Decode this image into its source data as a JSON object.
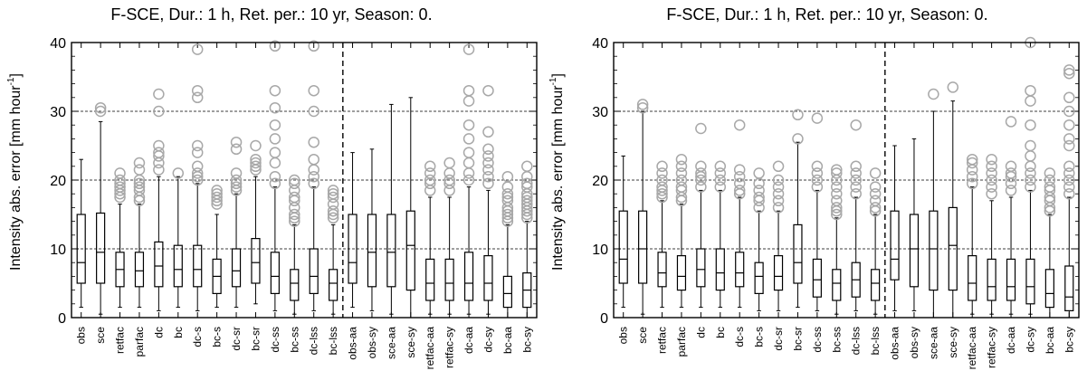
{
  "chart_data": [
    {
      "type": "box",
      "title": "F-SCE, Dur.:   1 h, Ret. per.:  10 yr, Season:  0.",
      "ylabel_main": "Intensity abs. error [mm hour",
      "ylabel_sup": "-1",
      "ylabel_end": "]",
      "ylim": [
        0,
        40
      ],
      "yticks": [
        "0",
        "10",
        "20",
        "30",
        "40"
      ],
      "dashed_hlines": [
        10,
        20,
        30
      ],
      "split_after": 14,
      "categories": [
        "obs",
        "sce",
        "retfac",
        "parfac",
        "dc",
        "bc",
        "dc-s",
        "bc-s",
        "dc-sr",
        "bc-sr",
        "dc-ss",
        "bc-ss",
        "dc-lss",
        "bc-lss",
        "obs-aa",
        "obs-sy",
        "sce-aa",
        "sce-sy",
        "retfac-aa",
        "retfac-sy",
        "dc-aa",
        "dc-sy",
        "bc-aa",
        "bc-sy"
      ],
      "boxes": [
        {
          "min": 1.5,
          "q1": 5.0,
          "median": 8.0,
          "q3": 15.0,
          "max": 23.0,
          "outliers": []
        },
        {
          "min": 0.5,
          "q1": 5.0,
          "median": 9.5,
          "q3": 15.2,
          "max": 28.5,
          "outliers": [
            30.0,
            30.5
          ]
        },
        {
          "min": 1.5,
          "q1": 4.5,
          "median": 7.0,
          "q3": 9.5,
          "max": 16.5,
          "outliers": [
            17.5,
            18.0,
            18.5,
            19.0,
            19.5,
            20.0,
            21.0
          ]
        },
        {
          "min": 1.5,
          "q1": 4.5,
          "median": 6.8,
          "q3": 9.5,
          "max": 16.5,
          "outliers": [
            17.0,
            17.5,
            18.5,
            19.0,
            19.5,
            20.0,
            21.5,
            22.5
          ]
        },
        {
          "min": 1.0,
          "q1": 4.5,
          "median": 7.5,
          "q3": 11.0,
          "max": 20.5,
          "outliers": [
            21.5,
            22.5,
            23.5,
            24.0,
            25.0,
            30.0,
            32.5
          ]
        },
        {
          "min": 1.5,
          "q1": 4.5,
          "median": 7.0,
          "q3": 10.5,
          "max": 20.5,
          "outliers": [
            21.0
          ]
        },
        {
          "min": 1.0,
          "q1": 4.5,
          "median": 7.0,
          "q3": 10.5,
          "max": 19.5,
          "outliers": [
            20.0,
            20.5,
            21.0,
            22.0,
            24.0,
            25.0,
            32.0,
            33.0,
            39.0
          ]
        },
        {
          "min": 1.5,
          "q1": 3.5,
          "median": 6.0,
          "q3": 8.5,
          "max": 15.0,
          "outliers": [
            16.5,
            17.0,
            17.5,
            18.0,
            18.5
          ]
        },
        {
          "min": 1.5,
          "q1": 4.5,
          "median": 6.8,
          "q3": 10.0,
          "max": 18.0,
          "outliers": [
            18.5,
            19.0,
            19.5,
            20.0,
            21.0,
            24.5,
            25.5
          ]
        },
        {
          "min": 2.0,
          "q1": 5.0,
          "median": 8.0,
          "q3": 11.5,
          "max": 20.5,
          "outliers": [
            21.5,
            22.0,
            22.5,
            23.0,
            25.0
          ]
        },
        {
          "min": 1.0,
          "q1": 3.5,
          "median": 6.0,
          "q3": 9.5,
          "max": 19.0,
          "outliers": [
            19.5,
            20.5,
            22.5,
            24.0,
            26.0,
            28.0,
            30.5,
            33.0,
            39.5
          ]
        },
        {
          "min": 0.5,
          "q1": 2.5,
          "median": 5.0,
          "q3": 7.0,
          "max": 13.5,
          "outliers": [
            14.0,
            14.5,
            15.0,
            16.0,
            17.0,
            17.5,
            18.5,
            19.5,
            20.0
          ]
        },
        {
          "min": 1.0,
          "q1": 3.5,
          "median": 6.0,
          "q3": 10.0,
          "max": 19.0,
          "outliers": [
            19.5,
            20.5,
            21.5,
            23.0,
            25.5,
            30.0,
            33.0,
            39.5
          ]
        },
        {
          "min": 0.5,
          "q1": 2.5,
          "median": 5.0,
          "q3": 7.0,
          "max": 13.5,
          "outliers": [
            14.5,
            15.0,
            15.5,
            16.5,
            17.5,
            18.0,
            18.5
          ]
        },
        {
          "min": 1.5,
          "q1": 5.0,
          "median": 8.0,
          "q3": 15.0,
          "max": 24.0,
          "outliers": []
        },
        {
          "min": 1.0,
          "q1": 4.5,
          "median": 9.5,
          "q3": 15.0,
          "max": 24.5,
          "outliers": []
        },
        {
          "min": 0.5,
          "q1": 4.5,
          "median": 9.5,
          "q3": 15.0,
          "max": 31.0,
          "outliers": []
        },
        {
          "min": 0.0,
          "q1": 4.0,
          "median": 10.5,
          "q3": 15.5,
          "max": 32.0,
          "outliers": []
        },
        {
          "min": 0.5,
          "q1": 2.5,
          "median": 5.0,
          "q3": 8.5,
          "max": 17.5,
          "outliers": [
            18.5,
            19.5,
            20.0,
            21.0,
            22.0
          ]
        },
        {
          "min": 0.5,
          "q1": 2.5,
          "median": 5.0,
          "q3": 8.5,
          "max": 17.5,
          "outliers": [
            18.5,
            19.5,
            20.0,
            21.0,
            22.5
          ]
        },
        {
          "min": 0.5,
          "q1": 2.5,
          "median": 5.0,
          "q3": 9.5,
          "max": 19.0,
          "outliers": [
            20.0,
            21.0,
            22.5,
            24.0,
            26.0,
            28.0,
            31.5,
            33.0,
            39.0
          ]
        },
        {
          "min": 0.5,
          "q1": 2.5,
          "median": 5.0,
          "q3": 9.0,
          "max": 18.5,
          "outliers": [
            19.5,
            20.5,
            21.5,
            22.5,
            23.5,
            24.5,
            27.0,
            33.0
          ]
        },
        {
          "min": 0.0,
          "q1": 1.5,
          "median": 3.5,
          "q3": 6.0,
          "max": 13.5,
          "outliers": [
            14.0,
            14.5,
            15.0,
            15.5,
            16.0,
            17.0,
            17.5,
            18.0,
            19.0,
            20.5
          ]
        },
        {
          "min": 0.0,
          "q1": 1.5,
          "median": 4.0,
          "q3": 6.5,
          "max": 14.0,
          "outliers": [
            14.5,
            15.0,
            15.5,
            16.0,
            16.5,
            17.0,
            17.5,
            18.0,
            19.0,
            19.5,
            20.5,
            22.0
          ]
        }
      ]
    },
    {
      "type": "box",
      "title": "F-SCE, Dur.:   1 h, Ret. per.:  10 yr, Season:  0.",
      "ylabel_main": "Intensity abs. error [mm hour",
      "ylabel_sup": "-1",
      "ylabel_end": "]",
      "ylim": [
        0,
        40
      ],
      "yticks": [
        "0",
        "10",
        "20",
        "30",
        "40"
      ],
      "dashed_hlines": [
        10,
        20,
        30
      ],
      "split_after": 14,
      "categories": [
        "obs",
        "sce",
        "retfac",
        "parfac",
        "dc",
        "bc",
        "dc-s",
        "bc-s",
        "dc-sr",
        "bc-sr",
        "dc-ss",
        "bc-ss",
        "dc-lss",
        "bc-lss",
        "obs-aa",
        "obs-sy",
        "sce-aa",
        "sce-sy",
        "retfac-aa",
        "retfac-sy",
        "dc-aa",
        "dc-sy",
        "bc-aa",
        "bc-sy"
      ],
      "boxes": [
        {
          "min": 1.5,
          "q1": 5.0,
          "median": 8.5,
          "q3": 15.5,
          "max": 23.5,
          "outliers": []
        },
        {
          "min": 0.5,
          "q1": 5.0,
          "median": 10.0,
          "q3": 15.5,
          "max": 30.0,
          "outliers": [
            30.5,
            31.0
          ]
        },
        {
          "min": 1.5,
          "q1": 4.5,
          "median": 6.5,
          "q3": 9.5,
          "max": 17.0,
          "outliers": [
            17.5,
            18.0,
            18.5,
            19.0,
            20.0,
            21.0,
            22.0
          ]
        },
        {
          "min": 1.5,
          "q1": 4.0,
          "median": 6.0,
          "q3": 9.0,
          "max": 16.5,
          "outliers": [
            17.0,
            17.5,
            18.5,
            19.0,
            20.0,
            21.0,
            22.0,
            23.0
          ]
        },
        {
          "min": 1.5,
          "q1": 4.5,
          "median": 7.0,
          "q3": 10.0,
          "max": 18.5,
          "outliers": [
            19.0,
            20.0,
            20.5,
            21.0,
            22.0,
            27.5
          ]
        },
        {
          "min": 1.5,
          "q1": 4.0,
          "median": 6.5,
          "q3": 10.0,
          "max": 18.5,
          "outliers": [
            19.0,
            20.0,
            21.0,
            22.0
          ]
        },
        {
          "min": 1.5,
          "q1": 4.5,
          "median": 6.5,
          "q3": 9.5,
          "max": 17.5,
          "outliers": [
            18.0,
            18.5,
            19.5,
            20.5,
            21.5,
            28.0
          ]
        },
        {
          "min": 1.0,
          "q1": 3.5,
          "median": 6.0,
          "q3": 8.0,
          "max": 15.5,
          "outliers": [
            16.0,
            17.0,
            17.5,
            18.5,
            19.5,
            21.0
          ]
        },
        {
          "min": 1.0,
          "q1": 4.0,
          "median": 6.0,
          "q3": 9.0,
          "max": 15.5,
          "outliers": [
            16.0,
            17.0,
            18.0,
            19.0,
            20.0,
            22.0
          ]
        },
        {
          "min": 1.5,
          "q1": 5.0,
          "median": 8.0,
          "q3": 13.5,
          "max": 25.5,
          "outliers": [
            26.0,
            29.5
          ]
        },
        {
          "min": 1.0,
          "q1": 3.0,
          "median": 5.5,
          "q3": 8.5,
          "max": 18.5,
          "outliers": [
            19.0,
            20.0,
            21.0,
            22.0,
            29.0
          ]
        },
        {
          "min": 0.5,
          "q1": 2.5,
          "median": 5.0,
          "q3": 7.0,
          "max": 14.5,
          "outliers": [
            15.0,
            15.5,
            16.0,
            17.0,
            18.0,
            19.0,
            20.0,
            21.0,
            21.5
          ]
        },
        {
          "min": 1.0,
          "q1": 3.0,
          "median": 5.5,
          "q3": 8.0,
          "max": 17.5,
          "outliers": [
            18.0,
            19.0,
            20.0,
            21.0,
            22.0,
            28.0
          ]
        },
        {
          "min": 0.5,
          "q1": 2.5,
          "median": 5.0,
          "q3": 7.0,
          "max": 15.0,
          "outliers": [
            15.5,
            16.0,
            17.0,
            18.0,
            19.0,
            21.0
          ]
        },
        {
          "min": 1.0,
          "q1": 5.5,
          "median": 8.5,
          "q3": 15.5,
          "max": 25.0,
          "outliers": []
        },
        {
          "min": 1.0,
          "q1": 4.5,
          "median": 10.0,
          "q3": 15.0,
          "max": 26.0,
          "outliers": []
        },
        {
          "min": 0.0,
          "q1": 4.0,
          "median": 10.0,
          "q3": 15.5,
          "max": 30.0,
          "outliers": [
            32.5
          ]
        },
        {
          "min": 0.0,
          "q1": 4.0,
          "median": 10.5,
          "q3": 16.0,
          "max": 31.5,
          "outliers": [
            33.5
          ]
        },
        {
          "min": 0.5,
          "q1": 2.5,
          "median": 5.0,
          "q3": 9.0,
          "max": 19.0,
          "outliers": [
            19.5,
            20.5,
            21.5,
            22.5,
            23.0
          ]
        },
        {
          "min": 0.5,
          "q1": 2.5,
          "median": 4.5,
          "q3": 8.5,
          "max": 17.0,
          "outliers": [
            18.0,
            19.0,
            20.0,
            21.0,
            22.0,
            23.0
          ]
        },
        {
          "min": 0.5,
          "q1": 2.5,
          "median": 4.5,
          "q3": 8.5,
          "max": 17.5,
          "outliers": [
            18.5,
            19.5,
            20.5,
            21.0,
            22.0,
            28.5
          ]
        },
        {
          "min": 0.5,
          "q1": 2.0,
          "median": 4.5,
          "q3": 8.5,
          "max": 18.5,
          "outliers": [
            19.0,
            20.0,
            21.0,
            22.0,
            23.5,
            25.0,
            28.0,
            31.5,
            33.0,
            40.0
          ]
        },
        {
          "min": 0.0,
          "q1": 1.5,
          "median": 3.5,
          "q3": 7.0,
          "max": 15.0,
          "outliers": [
            15.5,
            16.0,
            17.0,
            17.5,
            18.5,
            19.0,
            20.0,
            21.0
          ]
        },
        {
          "min": 0.0,
          "q1": 1.0,
          "median": 3.0,
          "q3": 7.5,
          "max": 17.5,
          "outliers": [
            18.0,
            19.0,
            20.0,
            21.0,
            22.0,
            25.0,
            26.0,
            28.0,
            30.0,
            32.0,
            35.5,
            36.0
          ]
        }
      ]
    }
  ]
}
